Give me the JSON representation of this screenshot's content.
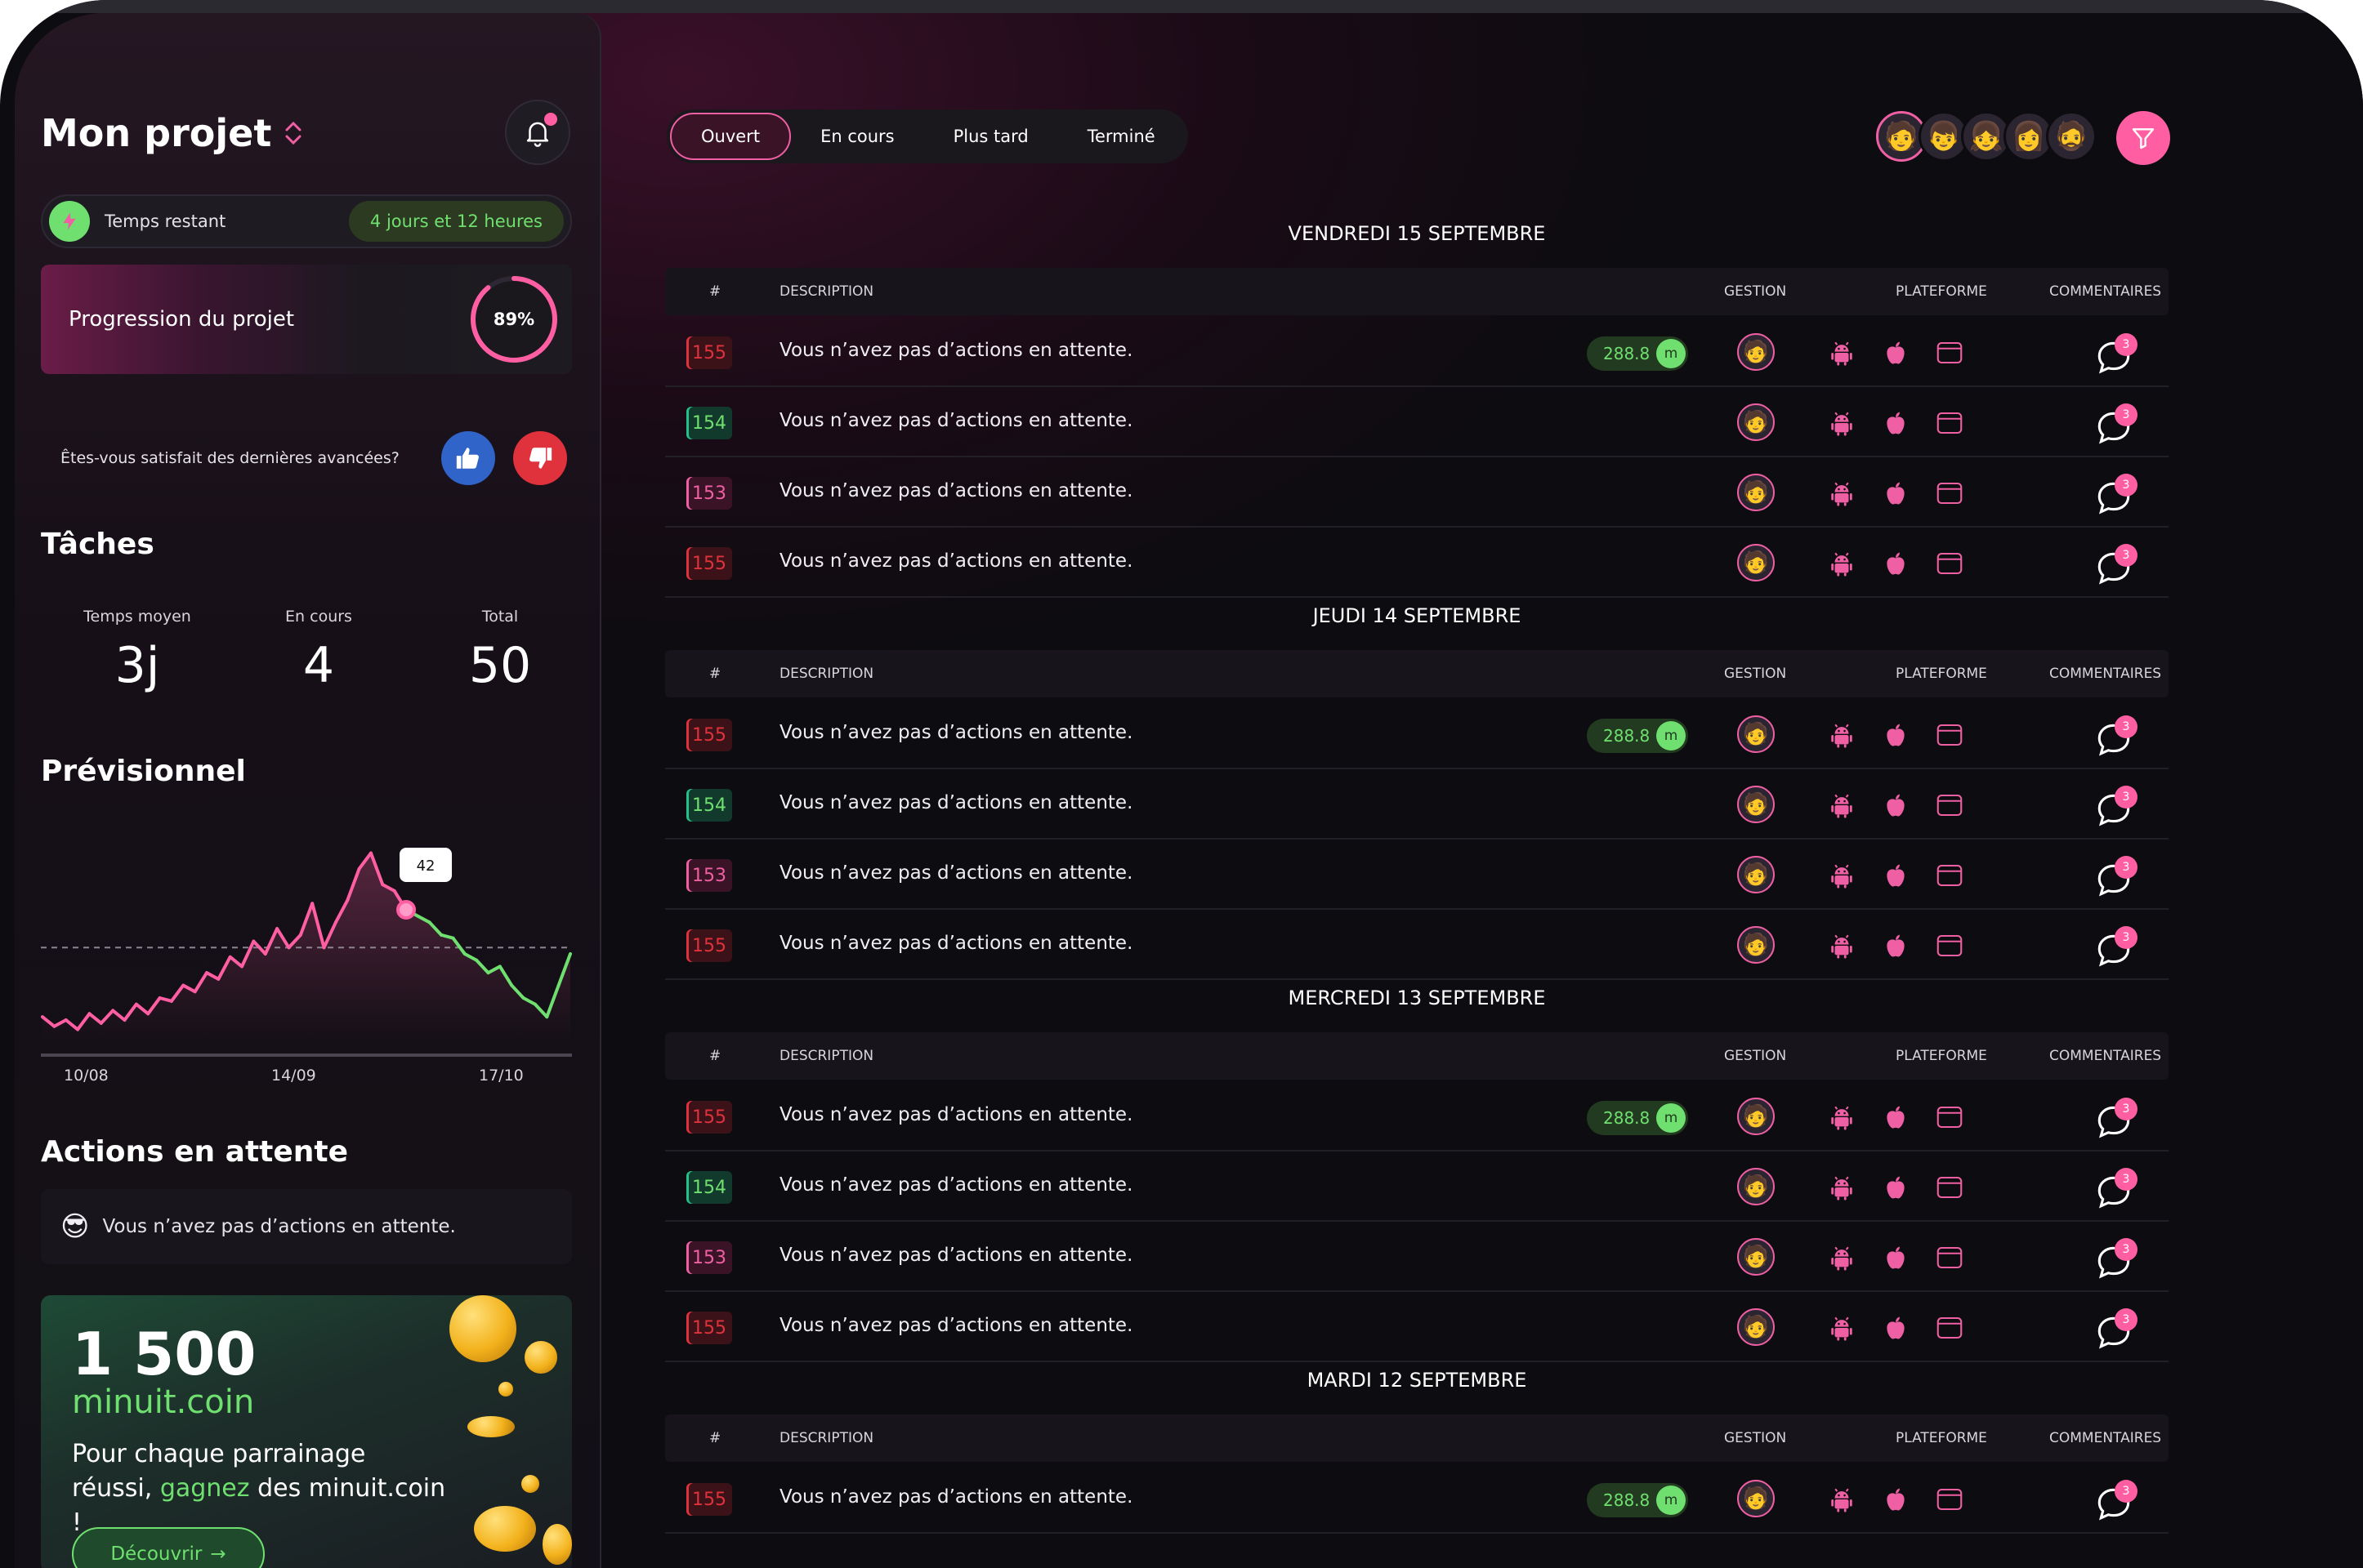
{
  "sidebar": {
    "project_title": "Mon projet",
    "time_label": "Temps restant",
    "time_value": "4 jours et 12 heures",
    "progress_label": "Progression du projet",
    "progress_percent": 89,
    "progress_text": "89%",
    "satisfaction_question": "Êtes-vous satisfait des dernières avancées?",
    "tasks_title": "Tâches",
    "stats": [
      {
        "label": "Temps moyen",
        "value": "3j"
      },
      {
        "label": "En cours",
        "value": "4"
      },
      {
        "label": "Total",
        "value": "50"
      }
    ],
    "forecast_title": "Prévisionnel",
    "pending_title": "Actions en attente",
    "pending_emoji": "😎",
    "pending_text": "Vous n’avez pas d’actions en attente.",
    "promo": {
      "amount": "1 500",
      "coin_name": "minuit.coin",
      "desc_part1": "Pour chaque parrainage réussi,",
      "desc_highlight": "gagnez",
      "desc_part2": "des minuit.coin !",
      "button_label": "Découvrir",
      "button_arrow": "→"
    }
  },
  "chart_data": {
    "type": "line",
    "x_ticks": [
      "10/08",
      "14/09",
      "17/10"
    ],
    "values": [
      8,
      5,
      7,
      4,
      9,
      6,
      10,
      7,
      12,
      9,
      14,
      13,
      18,
      16,
      22,
      20,
      27,
      24,
      32,
      28,
      36,
      30,
      34,
      44,
      30,
      38,
      45,
      55,
      60,
      50,
      48,
      42,
      40,
      38,
      34,
      33,
      28,
      26,
      22,
      24,
      18,
      14,
      12,
      8,
      18,
      28
    ],
    "highlight_index": 31,
    "highlight_label": "42",
    "reference_line": 30,
    "ylim": [
      0,
      70
    ],
    "colors": {
      "above": "#ff5fa2",
      "below": "#6fe06f"
    }
  },
  "tabs": [
    {
      "label": "Ouvert",
      "active": true
    },
    {
      "label": "En cours",
      "active": false
    },
    {
      "label": "Plus tard",
      "active": false
    },
    {
      "label": "Terminé",
      "active": false
    }
  ],
  "avatars": [
    "🧑",
    "👦",
    "👧",
    "👩",
    "🧔"
  ],
  "table_headers": {
    "num": "#",
    "description": "DESCRIPTION",
    "gestion": "GESTION",
    "plateforme": "PLATEFORME",
    "commentaires": "COMMENTAIRES"
  },
  "days": [
    {
      "title": "VENDREDI 15 SEPTEMBRE",
      "rows": [
        {
          "id": "155",
          "color": "red",
          "desc": "Vous n’avez pas d’actions en attente.",
          "chip": "288.8",
          "chip_icon": "m",
          "comments": "3"
        },
        {
          "id": "154",
          "color": "green",
          "desc": "Vous n’avez pas d’actions en attente.",
          "comments": "3"
        },
        {
          "id": "153",
          "color": "pink",
          "desc": "Vous n’avez pas d’actions en attente.",
          "comments": "3"
        },
        {
          "id": "155",
          "color": "red",
          "desc": "Vous n’avez pas d’actions en attente.",
          "comments": "3"
        }
      ]
    },
    {
      "title": "JEUDI 14 SEPTEMBRE",
      "rows": [
        {
          "id": "155",
          "color": "red",
          "desc": "Vous n’avez pas d’actions en attente.",
          "chip": "288.8",
          "chip_icon": "m",
          "comments": "3"
        },
        {
          "id": "154",
          "color": "green",
          "desc": "Vous n’avez pas d’actions en attente.",
          "comments": "3"
        },
        {
          "id": "153",
          "color": "pink",
          "desc": "Vous n’avez pas d’actions en attente.",
          "comments": "3"
        },
        {
          "id": "155",
          "color": "red",
          "desc": "Vous n’avez pas d’actions en attente.",
          "comments": "3"
        }
      ]
    },
    {
      "title": "MERCREDI 13 SEPTEMBRE",
      "rows": [
        {
          "id": "155",
          "color": "red",
          "desc": "Vous n’avez pas d’actions en attente.",
          "chip": "288.8",
          "chip_icon": "m",
          "comments": "3"
        },
        {
          "id": "154",
          "color": "green",
          "desc": "Vous n’avez pas d’actions en attente.",
          "comments": "3"
        },
        {
          "id": "153",
          "color": "pink",
          "desc": "Vous n’avez pas d’actions en attente.",
          "comments": "3"
        },
        {
          "id": "155",
          "color": "red",
          "desc": "Vous n’avez pas d’actions en attente.",
          "comments": "3"
        }
      ]
    },
    {
      "title": "MARDI 12 SEPTEMBRE",
      "rows": [
        {
          "id": "155",
          "color": "red",
          "desc": "Vous n’avez pas d’actions en attente.",
          "chip": "288.8",
          "chip_icon": "m",
          "comments": "3"
        }
      ]
    }
  ],
  "colors": {
    "accent": "#ff5fa2",
    "success": "#6fe06f",
    "danger": "#e0323c",
    "info": "#3064c9"
  }
}
